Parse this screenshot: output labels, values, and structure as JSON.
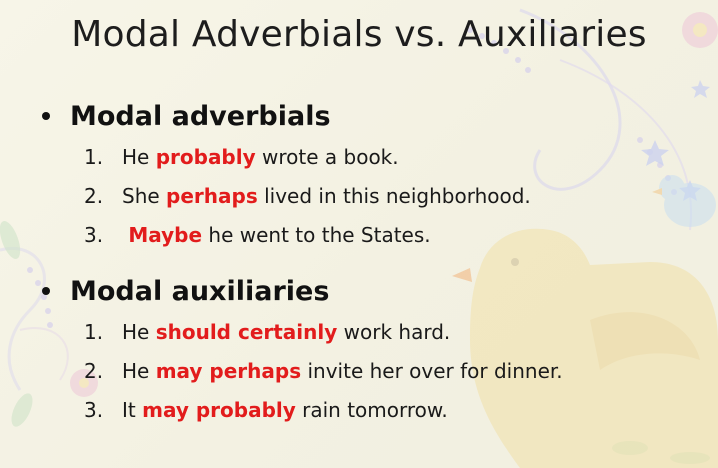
{
  "slide": {
    "title": "Modal Adverbials vs. Auxiliaries",
    "colors": {
      "emphasis": "#e21c1c",
      "text": "#1a1a1a",
      "background": "#f6f4e6"
    },
    "sections": [
      {
        "heading": "Modal adverbials",
        "items": [
          {
            "number": "1.",
            "before": "He ",
            "emph": "probably",
            "after": " wrote a book."
          },
          {
            "number": "2.",
            "before": "She ",
            "emph": "perhaps",
            "after": " lived in this neighborhood."
          },
          {
            "number": "3.",
            "before": " ",
            "emph": "Maybe",
            "after": " he went to the States."
          }
        ]
      },
      {
        "heading": "Modal auxiliaries",
        "items": [
          {
            "number": "1.",
            "before": "He ",
            "emph": "should certainly",
            "after": " work hard."
          },
          {
            "number": "2.",
            "before": "He ",
            "emph": "may perhaps",
            "after": " invite her over for dinner."
          },
          {
            "number": "3.",
            "before": "It ",
            "emph": "may probably",
            "after": " rain tomorrow."
          }
        ]
      }
    ]
  }
}
